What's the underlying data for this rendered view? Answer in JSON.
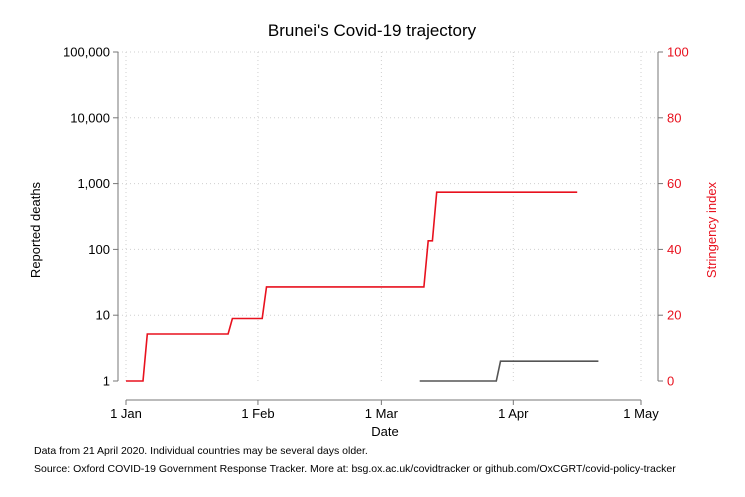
{
  "chart_data": {
    "type": "line",
    "title": "Brunei's Covid-19 trajectory",
    "xlabel": "Date",
    "ylabel_left": "Reported deaths",
    "ylabel_right": "Stringency index",
    "x_axis": {
      "ticks": [
        "2020-01-01",
        "2020-02-01",
        "2020-03-01",
        "2020-04-01",
        "2020-05-01"
      ],
      "tick_labels": [
        "1 Jan",
        "1 Feb",
        "1 Mar",
        "1 Apr",
        "1 May"
      ],
      "range": [
        "2020-01-01",
        "2020-05-01"
      ]
    },
    "y_left": {
      "scale": "log",
      "range": [
        1,
        100000
      ],
      "ticks": [
        1,
        10,
        100,
        1000,
        10000,
        100000
      ],
      "tick_labels": [
        "1",
        "10",
        "100",
        "1,000",
        "10,000",
        "100,000"
      ]
    },
    "y_right": {
      "scale": "linear",
      "range": [
        0,
        100
      ],
      "ticks": [
        0,
        20,
        40,
        60,
        80,
        100
      ],
      "tick_labels": [
        "0",
        "20",
        "40",
        "60",
        "80",
        "100"
      ]
    },
    "grid": true,
    "series": [
      {
        "axis": "right",
        "color": "#e8111e",
        "step": true,
        "x": [
          "2020-01-01",
          "2020-01-05",
          "2020-01-06",
          "2020-01-25",
          "2020-01-26",
          "2020-02-02",
          "2020-02-03",
          "2020-03-11",
          "2020-03-12",
          "2020-03-13",
          "2020-03-14",
          "2020-04-16"
        ],
        "y": [
          0,
          0,
          14.3,
          14.3,
          19,
          19,
          28.6,
          28.6,
          42.6,
          42.6,
          57.4,
          57.4
        ]
      },
      {
        "axis": "left",
        "color": "#555555",
        "step": true,
        "x": [
          "2020-03-10",
          "2020-03-28",
          "2020-03-29",
          "2020-04-21"
        ],
        "y": [
          1,
          1,
          2,
          2
        ]
      }
    ],
    "notes": [
      "Data from 21 April 2020. Individual countries may be several days older.",
      "Source: Oxford COVID-19 Government Response Tracker. More at: bsg.ox.ac.uk/covidtracker or github.com/OxCGRT/covid-policy-tracker"
    ]
  }
}
